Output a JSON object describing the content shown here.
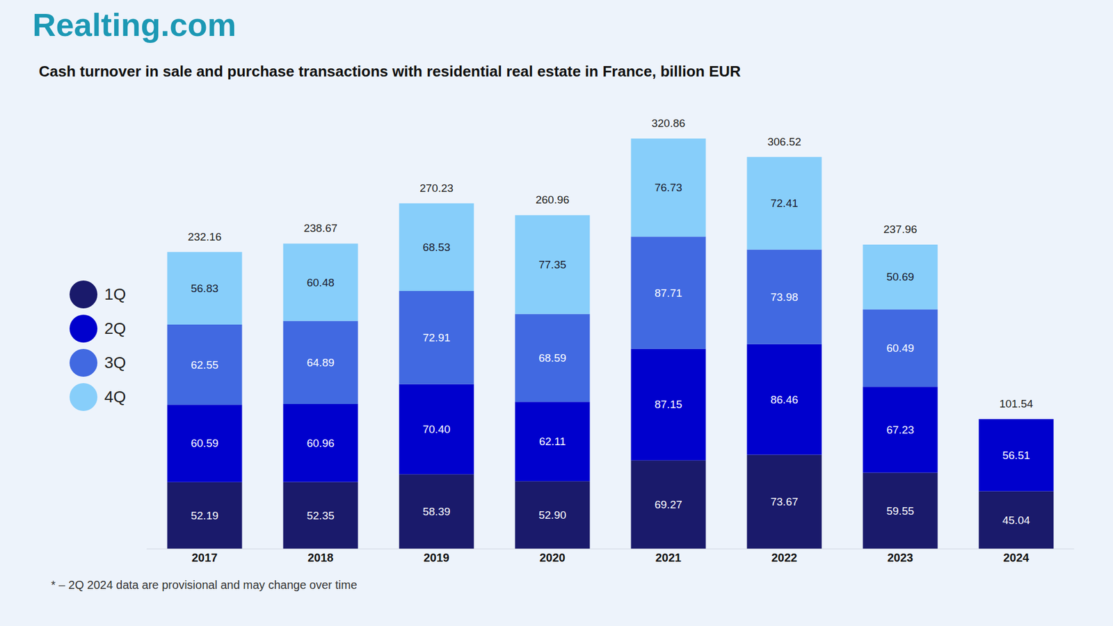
{
  "logo": "Realting.com",
  "footnote": "* – 2Q 2024 data are provisional and may change over time",
  "chart_data": {
    "type": "bar",
    "title": "Cash turnover in sale and purchase transactions with residential real estate in France, billion EUR",
    "stacked": true,
    "data_labels": true,
    "legend": "left",
    "tick_labels": "x",
    "categories": [
      "2017",
      "2018",
      "2019",
      "2020",
      "2021",
      "2022",
      "2023",
      "2024"
    ],
    "series": [
      {
        "name": "1Q",
        "color": "#1a1a6b",
        "values": [
          52.19,
          52.35,
          58.39,
          52.9,
          69.27,
          73.67,
          59.55,
          45.04
        ],
        "value_labels": [
          "52.19",
          "52.35",
          "58.39",
          "52.90",
          "69.27",
          "73.67",
          "59.55",
          "45.04"
        ]
      },
      {
        "name": "2Q",
        "color": "#0000cd",
        "values": [
          60.59,
          60.96,
          70.4,
          62.11,
          87.15,
          86.46,
          67.23,
          56.51
        ],
        "value_labels": [
          "60.59",
          "60.96",
          "70.40",
          "62.11",
          "87.15",
          "86.46",
          "67.23",
          "56.51"
        ]
      },
      {
        "name": "3Q",
        "color": "#4169e1",
        "values": [
          62.55,
          64.89,
          72.91,
          68.59,
          87.71,
          73.98,
          60.49,
          null
        ],
        "value_labels": [
          "62.55",
          "64.89",
          "72.91",
          "68.59",
          "87.71",
          "73.98",
          "60.49",
          null
        ]
      },
      {
        "name": "4Q",
        "color": "#87cefa",
        "values": [
          56.83,
          60.48,
          68.53,
          77.35,
          76.73,
          72.41,
          50.69,
          null
        ],
        "value_labels": [
          "56.83",
          "60.48",
          "68.53",
          "77.35",
          "76.73",
          "72.41",
          "50.69",
          null
        ]
      }
    ],
    "totals": [
      232.16,
      238.67,
      270.23,
      260.96,
      320.86,
      306.52,
      237.96,
      101.54
    ]
  }
}
